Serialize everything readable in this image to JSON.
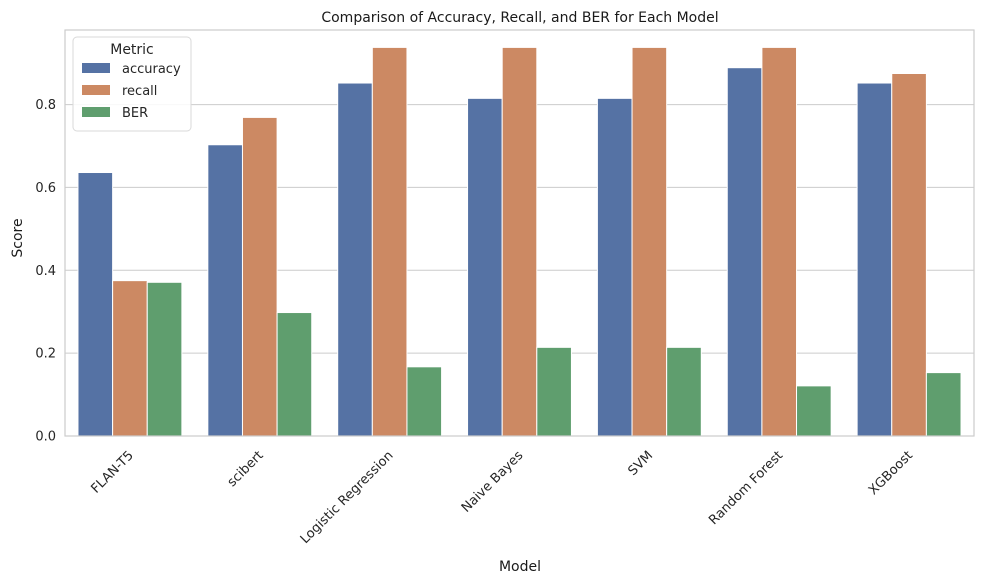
{
  "chart_data": {
    "type": "bar",
    "title": "Comparison of Accuracy, Recall, and BER for Each Model",
    "xlabel": "Model",
    "ylabel": "Score",
    "ylim": [
      0,
      0.98
    ],
    "yticks": [
      "0.0",
      "0.2",
      "0.4",
      "0.6",
      "0.8"
    ],
    "grid": "horizontal",
    "legend_title": "Metric",
    "legend_position": "top-left",
    "categories": [
      "FLAN-T5",
      "scibert",
      "Logistic Regression",
      "Naive Bayes",
      "SVM",
      "Random Forest",
      "XGBoost"
    ],
    "series": [
      {
        "name": "accuracy",
        "color": "#5572a4",
        "values": [
          0.636,
          0.703,
          0.852,
          0.815,
          0.815,
          0.889,
          0.852
        ]
      },
      {
        "name": "recall",
        "color": "#cc8963",
        "values": [
          0.375,
          0.769,
          0.938,
          0.938,
          0.938,
          0.938,
          0.875
        ]
      },
      {
        "name": "BER",
        "color": "#5f9e6e",
        "values": [
          0.371,
          0.298,
          0.167,
          0.214,
          0.214,
          0.121,
          0.153
        ]
      }
    ]
  }
}
